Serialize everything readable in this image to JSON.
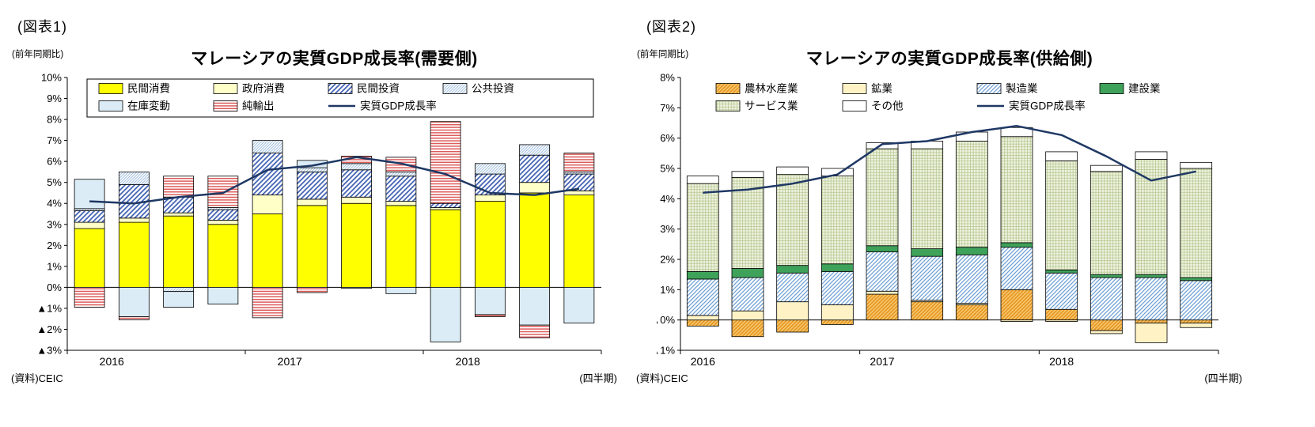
{
  "chart_data": [
    {
      "type": "bar",
      "stacked": true,
      "figure_label": "(図表1)",
      "axis_note": "(前年同期比)",
      "title": "マレーシアの実質GDP成長率(需要側)",
      "source": "(資料)CEIC",
      "xaxis_note": "(四半期)",
      "categories": [
        "2016Q1",
        "2016Q2",
        "2016Q3",
        "2016Q4",
        "2017Q1",
        "2017Q2",
        "2017Q3",
        "2017Q4",
        "2018Q1",
        "2018Q2",
        "2018Q3",
        "2018Q4"
      ],
      "ylim": [
        -3,
        10
      ],
      "grid": false,
      "legend_position": "top-inside",
      "legend_border": true,
      "yticks": [
        {
          "v": 10,
          "label": "10%"
        },
        {
          "v": 9,
          "label": "9%"
        },
        {
          "v": 8,
          "label": "8%"
        },
        {
          "v": 7,
          "label": "7%"
        },
        {
          "v": 6,
          "label": "6%"
        },
        {
          "v": 5,
          "label": "5%"
        },
        {
          "v": 4,
          "label": "4%"
        },
        {
          "v": 3,
          "label": "3%"
        },
        {
          "v": 2,
          "label": "2%"
        },
        {
          "v": 1,
          "label": "1%"
        },
        {
          "v": 0,
          "label": "0%"
        },
        {
          "v": -1,
          "label": "▲1%"
        },
        {
          "v": -2,
          "label": "▲2%"
        },
        {
          "v": -3,
          "label": "▲3%"
        }
      ],
      "xlabels": [
        {
          "text": "2016",
          "x_slot": 1
        },
        {
          "text": "2017",
          "x_slot": 5
        },
        {
          "text": "2018",
          "x_slot": 9
        }
      ],
      "legend_rows": [
        [
          "s0",
          "s1",
          "s2",
          "s3"
        ],
        [
          "s4",
          "s5",
          "line"
        ]
      ],
      "series": [
        {
          "name": "民間消費",
          "pattern": "solid",
          "color": "#FFFF00",
          "values": [
            2.8,
            3.1,
            3.4,
            3.0,
            3.5,
            3.9,
            4.0,
            3.9,
            3.7,
            4.1,
            4.5,
            4.4
          ]
        },
        {
          "name": "政府消費",
          "pattern": "solid",
          "color": "#FFFFC8",
          "values": [
            0.3,
            0.2,
            0.15,
            0.2,
            0.9,
            0.3,
            0.3,
            0.2,
            0.1,
            0.3,
            0.5,
            0.2
          ]
        },
        {
          "name": "民間投資",
          "pattern": "diag-bold",
          "color": "#4565B5",
          "values": [
            0.55,
            1.6,
            0.75,
            0.5,
            2.0,
            1.3,
            1.3,
            1.2,
            0.2,
            1.0,
            1.3,
            0.8
          ]
        },
        {
          "name": "公共投資",
          "pattern": "diag-fine",
          "color": "#97B9DC",
          "values": [
            0.1,
            0.6,
            -0.2,
            0.1,
            0.6,
            0.2,
            0.3,
            0.2,
            0.0,
            0.5,
            0.5,
            0.1
          ]
        },
        {
          "name": "在庫変動",
          "pattern": "solid",
          "color": "#DBECF6",
          "values": [
            1.4,
            -1.4,
            -0.75,
            -0.8,
            0.0,
            0.35,
            -0.05,
            -0.3,
            -2.6,
            -1.3,
            -1.8,
            -1.7
          ]
        },
        {
          "name": "純輸出",
          "pattern": "horiz",
          "color": "#DD5B5B",
          "values": [
            -0.95,
            -0.15,
            1.0,
            1.5,
            -1.45,
            -0.25,
            0.35,
            0.7,
            3.9,
            -0.1,
            -0.6,
            0.9
          ]
        }
      ],
      "line": {
        "name": "実質GDP成長率",
        "color": "#1F3864",
        "values": [
          4.1,
          4.0,
          4.3,
          4.5,
          5.6,
          5.8,
          6.2,
          5.9,
          5.4,
          4.5,
          4.4,
          4.7
        ]
      }
    },
    {
      "type": "bar",
      "stacked": true,
      "figure_label": "(図表2)",
      "axis_note": "(前年同期比)",
      "title": "マレーシアの実質GDP成長率(供給側)",
      "source": "(資料)CEIC",
      "xaxis_note": "(四半期)",
      "categories": [
        "2016Q1",
        "2016Q2",
        "2016Q3",
        "2016Q4",
        "2017Q1",
        "2017Q2",
        "2017Q3",
        "2017Q4",
        "2018Q1",
        "2018Q2",
        "2018Q3",
        "2018Q4"
      ],
      "ylim": [
        -1,
        8
      ],
      "grid": false,
      "legend_position": "top-inside",
      "legend_border": false,
      "yticks": [
        {
          "v": 8,
          "label": "8%"
        },
        {
          "v": 7,
          "label": "7%"
        },
        {
          "v": 6,
          "label": "6%"
        },
        {
          "v": 5,
          "label": "5%"
        },
        {
          "v": 4,
          "label": "4%"
        },
        {
          "v": 3,
          "label": "3%"
        },
        {
          "v": 2,
          "label": "2%"
        },
        {
          "v": 1,
          "label": "1%"
        },
        {
          "v": 0,
          "label": "▲0%"
        },
        {
          "v": -1,
          "label": "▲1%"
        }
      ],
      "xlabels": [
        {
          "text": "2016",
          "x_slot": 0.5
        },
        {
          "text": "2017",
          "x_slot": 4.5
        },
        {
          "text": "2018",
          "x_slot": 8.5
        }
      ],
      "legend_rows": [
        [
          "s0",
          "s1",
          "s2",
          "s3"
        ],
        [
          "s4",
          "s5",
          "line"
        ]
      ],
      "series": [
        {
          "name": "農林水産業",
          "pattern": "diag-dense",
          "color": "#E89A28",
          "bg": "#FCD98A",
          "values": [
            -0.2,
            -0.55,
            -0.4,
            -0.15,
            0.85,
            0.6,
            0.5,
            1.0,
            0.35,
            -0.35,
            -0.1,
            -0.1
          ]
        },
        {
          "name": "鉱業",
          "pattern": "solid",
          "color": "#FFF3C6",
          "values": [
            0.15,
            0.3,
            0.6,
            0.5,
            0.1,
            0.05,
            0.05,
            -0.05,
            -0.05,
            -0.1,
            -0.65,
            -0.15
          ]
        },
        {
          "name": "製造業",
          "pattern": "diag-med",
          "color": "#6FA0D4",
          "values": [
            1.2,
            1.1,
            0.95,
            1.1,
            1.3,
            1.45,
            1.6,
            1.4,
            1.2,
            1.4,
            1.4,
            1.3
          ]
        },
        {
          "name": "建設業",
          "pattern": "solid",
          "color": "#3FA25A",
          "values": [
            0.25,
            0.3,
            0.25,
            0.25,
            0.2,
            0.25,
            0.25,
            0.15,
            0.1,
            0.1,
            0.1,
            0.1
          ]
        },
        {
          "name": "サービス業",
          "pattern": "grid-fine",
          "color": "#AEC186",
          "bg": "#EFF3E0",
          "values": [
            2.9,
            3.0,
            3.0,
            2.9,
            3.2,
            3.3,
            3.5,
            3.5,
            3.6,
            3.4,
            3.8,
            3.6
          ]
        },
        {
          "name": "その他",
          "pattern": "solid",
          "color": "#FFFFFF",
          "values": [
            0.25,
            0.2,
            0.25,
            0.25,
            0.2,
            0.25,
            0.3,
            0.3,
            0.3,
            0.2,
            0.25,
            0.2
          ]
        }
      ],
      "line": {
        "name": "実質GDP成長率",
        "color": "#1F3864",
        "values": [
          4.2,
          4.3,
          4.5,
          4.8,
          5.8,
          5.9,
          6.2,
          6.4,
          6.1,
          5.4,
          4.6,
          4.9
        ]
      }
    }
  ]
}
